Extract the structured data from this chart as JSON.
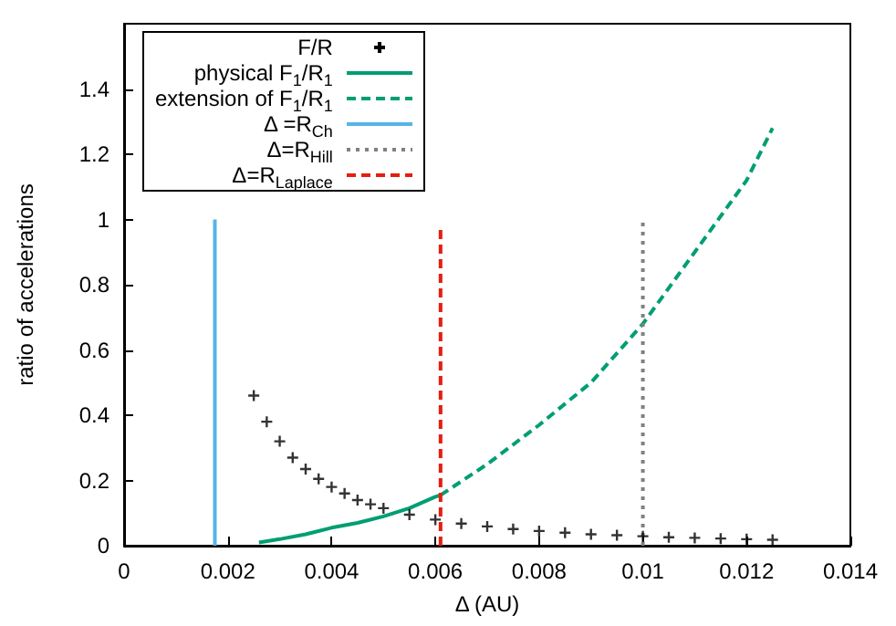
{
  "chart_data": {
    "type": "line",
    "xlabel": "Δ (AU)",
    "ylabel": "ratio of accelerations",
    "xlim": [
      0,
      0.014
    ],
    "xticks": [
      0,
      0.002,
      0.004,
      0.006,
      0.008,
      0.01,
      0.012,
      0.014
    ],
    "ylim": [
      0,
      1.6
    ],
    "yticks": [
      0,
      0.2,
      0.4,
      0.6,
      0.8,
      1,
      1.2,
      1.4
    ],
    "grid": false,
    "legend": "top left",
    "series": [
      {
        "name": "F/R",
        "type": "scatter",
        "marker": "cross",
        "color": "#000000",
        "x": [
          0.0025,
          0.00275,
          0.003,
          0.00325,
          0.0035,
          0.00375,
          0.004,
          0.00425,
          0.0045,
          0.00475,
          0.005,
          0.0055,
          0.006,
          0.0065,
          0.007,
          0.0075,
          0.008,
          0.0085,
          0.009,
          0.0095,
          0.01,
          0.0105,
          0.011,
          0.0115,
          0.012,
          0.0125
        ],
        "values": [
          0.46,
          0.38,
          0.32,
          0.27,
          0.235,
          0.205,
          0.18,
          0.16,
          0.14,
          0.127,
          0.115,
          0.095,
          0.08,
          0.068,
          0.059,
          0.051,
          0.045,
          0.04,
          0.035,
          0.032,
          0.029,
          0.026,
          0.024,
          0.022,
          0.02,
          0.018
        ]
      },
      {
        "name": "physical F$_{1}$/R$_{1}$",
        "line_style": "solid",
        "color": "#009e73",
        "x": [
          0.0026,
          0.003,
          0.0035,
          0.004,
          0.0045,
          0.005,
          0.0055,
          0.006,
          0.0061
        ],
        "values": [
          0.01,
          0.02,
          0.035,
          0.055,
          0.07,
          0.09,
          0.115,
          0.15,
          0.155
        ]
      },
      {
        "name": "extension of F$_{1}$/R$_{1}$",
        "line_style": "dashed",
        "color": "#009e73",
        "x": [
          0.0061,
          0.007,
          0.008,
          0.009,
          0.01,
          0.011,
          0.012,
          0.0125
        ],
        "values": [
          0.155,
          0.25,
          0.37,
          0.5,
          0.68,
          0.9,
          1.12,
          1.28
        ]
      },
      {
        "name": "Δ =R$_{Ch}$",
        "line_style": "solid",
        "color": "#56b4e9",
        "x": [
          0.00175,
          0.00175
        ],
        "values": [
          0,
          1
        ]
      },
      {
        "name": "Δ=R$_{Hill}$",
        "line_style": "dotted",
        "color": "#808080",
        "x": [
          0.01,
          0.01
        ],
        "values": [
          0,
          1
        ]
      },
      {
        "name": "Δ=R$_{Laplace}$",
        "line_style": "dashed",
        "color": "#e51e10",
        "x": [
          0.0061,
          0.0061
        ],
        "values": [
          0,
          0.98
        ]
      }
    ]
  }
}
